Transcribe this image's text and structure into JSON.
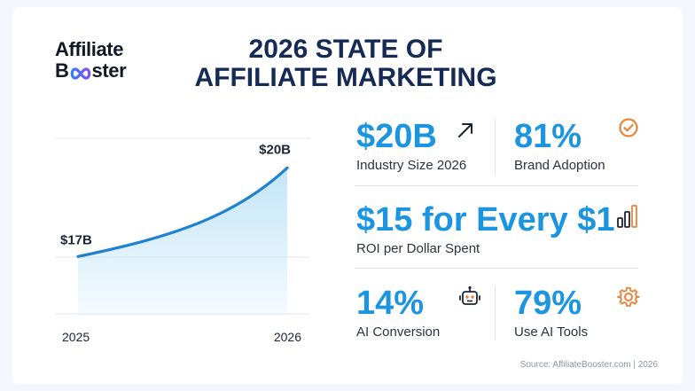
{
  "logo": {
    "line1": "Affiliate",
    "line2_prefix": "B",
    "line2_suffix": "ster"
  },
  "title": {
    "line1": "2026 STATE OF",
    "line2": "AFFILIATE MARKETING"
  },
  "chart_data": {
    "type": "area",
    "title": "",
    "xlabel": "",
    "ylabel": "",
    "x": [
      "2025",
      "2026"
    ],
    "series": [
      {
        "name": "",
        "values": [
          17,
          20
        ]
      }
    ],
    "data_labels": [
      "$17B",
      "$20B"
    ],
    "ylim": [
      15,
      21
    ],
    "grid": true,
    "line_color": "#1f82d0",
    "fill_color": "#bfe4f8"
  },
  "stats": {
    "industry_size": {
      "value": "$20B",
      "label": "Industry Size 2026",
      "icon": "trend-arrow-icon"
    },
    "brand_adoption": {
      "value": "81%",
      "label": "Brand Adoption",
      "icon": "check-circle-icon"
    },
    "roi": {
      "value": "$15 for Every $1",
      "label": "ROI per Dollar Spent",
      "icon": "bar-chart-icon"
    },
    "ai_conversion": {
      "value": "14%",
      "label": "AI Conversion",
      "icon": "robot-icon"
    },
    "ai_tools": {
      "value": "79%",
      "label": "Use AI Tools",
      "icon": "gear-icon"
    }
  },
  "colors": {
    "accent": "#1b95e0",
    "icon_orange": "#e8843a",
    "title": "#152a54"
  },
  "source": "Source: AffiliateBooster.com | 2026"
}
